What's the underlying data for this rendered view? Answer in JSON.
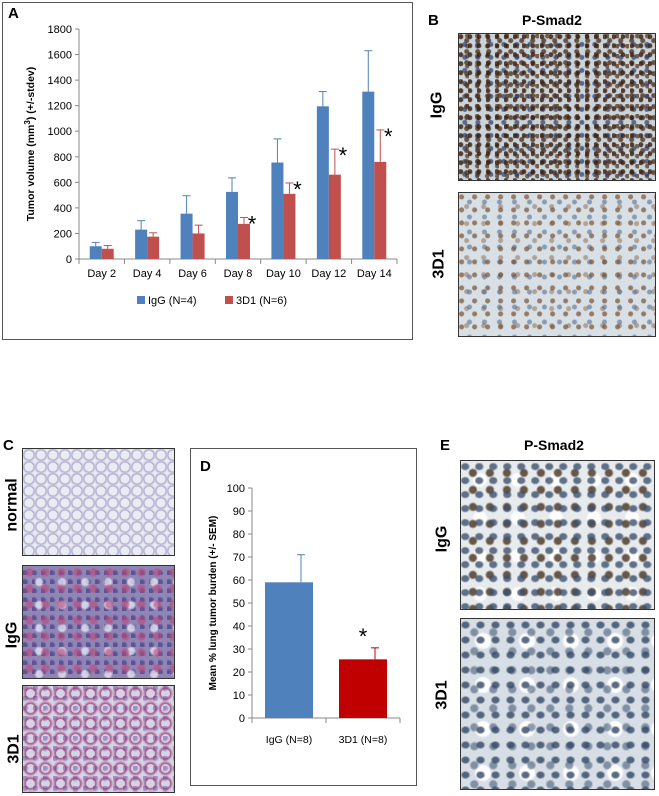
{
  "panels": {
    "a_label": "A",
    "b_label": "B",
    "c_label": "C",
    "d_label": "D",
    "e_label": "E"
  },
  "panel_b": {
    "title": "P-Smad2",
    "row1": "IgG",
    "row2": "3D1"
  },
  "panel_c": {
    "row1": "normal",
    "row2": "IgG",
    "row3": "3D1"
  },
  "panel_e": {
    "title": "P-Smad2",
    "row1": "IgG",
    "row2": "3D1"
  },
  "colors": {
    "igg": "#4f81bd",
    "d3d1_a": "#c0504d",
    "d3d1_d": "#c00000"
  },
  "chart_data": [
    {
      "type": "bar",
      "ylabel_main": "Tumor volume (mm",
      "ylabel_sup": "3",
      "ylabel_tail": ") (+/-stdev)",
      "categories": [
        "Day 2",
        "Day 4",
        "Day 6",
        "Day 8",
        "Day 10",
        "Day 12",
        "Day 14"
      ],
      "ylim": [
        0,
        1800
      ],
      "yticks": [
        0,
        200,
        400,
        600,
        800,
        1000,
        1200,
        1400,
        1600,
        1800
      ],
      "series": [
        {
          "name": "IgG (N=4)",
          "values": [
            100,
            230,
            355,
            525,
            755,
            1195,
            1310
          ],
          "errors": [
            30,
            70,
            140,
            110,
            185,
            115,
            320
          ]
        },
        {
          "name": "3D1 (N=6)",
          "values": [
            80,
            175,
            200,
            275,
            510,
            660,
            760
          ],
          "errors": [
            25,
            30,
            65,
            50,
            85,
            200,
            250
          ]
        }
      ],
      "annotations": [
        {
          "category": "Day 8",
          "text": "*"
        },
        {
          "category": "Day 10",
          "text": "*"
        },
        {
          "category": "Day 12",
          "text": "*"
        },
        {
          "category": "Day 14",
          "text": "*"
        }
      ],
      "legend_position": "bottom"
    },
    {
      "type": "bar",
      "ylabel": "Mean % lung tumor burden (+/- SEM)",
      "categories": [
        "IgG (N=8)",
        "3D1 (N=8)"
      ],
      "values": [
        59,
        25.5
      ],
      "errors": [
        12,
        5
      ],
      "ylim": [
        0,
        100
      ],
      "yticks": [
        0,
        10,
        20,
        30,
        40,
        50,
        60,
        70,
        80,
        90,
        100
      ],
      "annotations": [
        {
          "category": "3D1 (N=8)",
          "text": "*"
        }
      ]
    }
  ]
}
